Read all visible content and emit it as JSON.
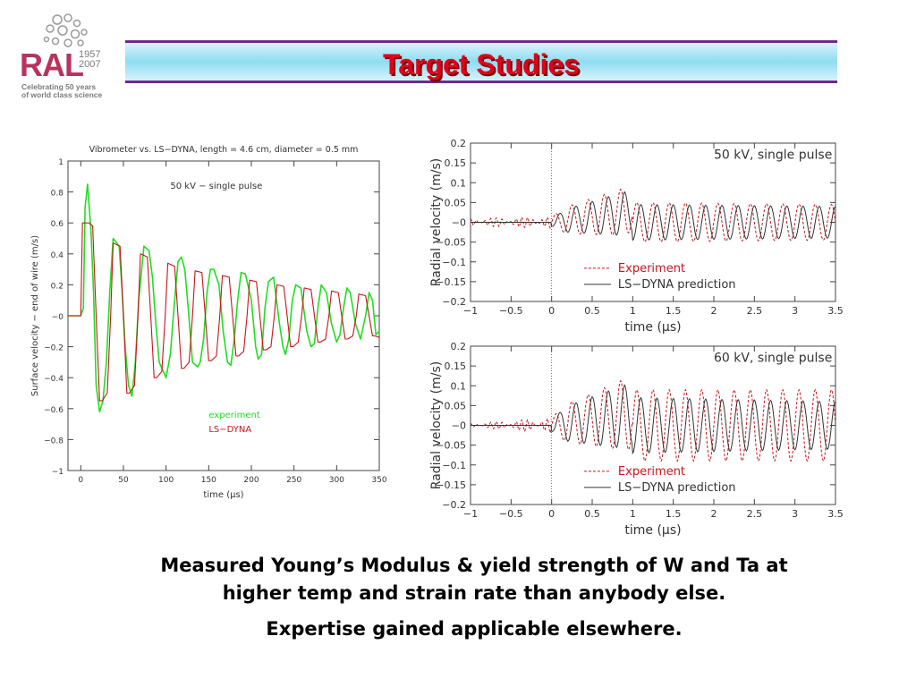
{
  "logo": {
    "ral": "RAL",
    "years": [
      "1957",
      "2007"
    ],
    "tagline": [
      "Celebrating 50 years",
      "of world class science"
    ]
  },
  "header": {
    "title": "Target Studies"
  },
  "caption": {
    "line1": "Measured Young’s Modulus & yield strength of W and Ta at",
    "line2": "higher temp and strain rate than anybody else.",
    "line3": "Expertise gained applicable elsewhere."
  },
  "colors": {
    "title": "#e0001b",
    "bar_border": "#6a2c8f",
    "experiment_green": "#22dd22",
    "lsdyna_red": "#c8151b"
  },
  "chart_data": [
    {
      "type": "line",
      "title": "Vibrometer vs. LS−DYNA, length = 4.6 cm, diameter = 0.5 mm",
      "annotation": "50 kV − single pulse",
      "xlabel": "time (μs)",
      "ylabel": "Surface velocity − end of wire (m/s)",
      "xlim": [
        -15,
        350
      ],
      "ylim": [
        -1,
        1
      ],
      "xticks": [
        0,
        50,
        100,
        150,
        200,
        250,
        300,
        350
      ],
      "yticks": [
        1,
        0.8,
        0.6,
        0.4,
        0.2,
        0,
        -0.2,
        -0.4,
        -0.6,
        -0.8,
        -1
      ],
      "ytick_labels": [
        "1",
        "0.8",
        "0.6",
        "0.4",
        "0.2",
        "−0",
        "−0.2",
        "−0.4",
        "−0.6",
        "−0.8",
        "−1"
      ],
      "legend": [
        "experiment",
        "LS−DYNA"
      ],
      "series": [
        {
          "name": "experiment",
          "color": "#22dd22",
          "x": [
            -15,
            0,
            3,
            5,
            8,
            12,
            15,
            18,
            22,
            26,
            30,
            34,
            38,
            45,
            48,
            52,
            56,
            60,
            64,
            68,
            74,
            80,
            84,
            88,
            92,
            96,
            100,
            105,
            110,
            114,
            118,
            122,
            126,
            131,
            137,
            140,
            144,
            148,
            152,
            156,
            162,
            167,
            172,
            176,
            180,
            184,
            188,
            193,
            200,
            205,
            208,
            212,
            216,
            220,
            226,
            233,
            237,
            240,
            244,
            248,
            252,
            258,
            265,
            270,
            274,
            278,
            282,
            288,
            294,
            300,
            304,
            308,
            312,
            316,
            322,
            328,
            334,
            338,
            342,
            346,
            350
          ],
          "y": [
            0,
            0,
            0.05,
            0.7,
            0.85,
            0.55,
            0.15,
            -0.45,
            -0.62,
            -0.55,
            -0.3,
            0.15,
            0.5,
            0.45,
            0.2,
            -0.2,
            -0.45,
            -0.52,
            -0.3,
            0.1,
            0.45,
            0.42,
            0.25,
            -0.05,
            -0.3,
            -0.35,
            -0.4,
            -0.25,
            0.1,
            0.35,
            0.38,
            0.3,
            0.05,
            -0.3,
            -0.33,
            -0.3,
            -0.15,
            0.15,
            0.3,
            0.3,
            0.2,
            -0.1,
            -0.3,
            -0.32,
            -0.15,
            0.1,
            0.28,
            0.27,
            0.1,
            -0.2,
            -0.28,
            -0.25,
            0.05,
            0.22,
            0.25,
            -0.05,
            -0.2,
            -0.25,
            -0.15,
            0.1,
            0.2,
            0.18,
            -0.1,
            -0.2,
            -0.18,
            0.05,
            0.2,
            0.15,
            -0.05,
            -0.17,
            -0.12,
            0.05,
            0.18,
            0.15,
            -0.05,
            -0.15,
            0.0,
            0.15,
            0.1,
            -0.12,
            -0.1
          ]
        },
        {
          "name": "LS−DYNA",
          "color": "#c8151b",
          "x": [
            -15,
            0,
            2,
            4,
            10,
            14,
            18,
            22,
            25,
            31,
            35,
            38,
            46,
            50,
            54,
            57,
            63,
            67,
            70,
            78,
            82,
            86,
            89,
            95,
            99,
            102,
            110,
            114,
            118,
            121,
            127,
            131,
            134,
            142,
            146,
            150,
            153,
            159,
            163,
            166,
            174,
            178,
            182,
            185,
            191,
            195,
            198,
            206,
            210,
            214,
            217,
            223,
            227,
            230,
            238,
            242,
            246,
            249,
            255,
            259,
            262,
            270,
            274,
            278,
            281,
            287,
            291,
            294,
            302,
            306,
            310,
            313,
            319,
            323,
            326,
            334,
            338,
            342,
            345,
            350
          ],
          "y": [
            0,
            0,
            0.6,
            0.6,
            0.6,
            0.58,
            0,
            -0.55,
            -0.55,
            -0.5,
            0,
            0.47,
            0.45,
            0,
            -0.5,
            -0.5,
            -0.45,
            0,
            0.4,
            0.38,
            0,
            -0.4,
            -0.4,
            -0.36,
            0,
            0.34,
            0.32,
            0,
            -0.34,
            -0.34,
            -0.3,
            0,
            0.29,
            0.28,
            0,
            -0.29,
            -0.29,
            -0.26,
            0,
            0.26,
            0.25,
            0,
            -0.26,
            -0.26,
            -0.23,
            0,
            0.23,
            0.22,
            0,
            -0.22,
            -0.22,
            -0.2,
            0,
            0.2,
            0.19,
            0,
            -0.2,
            -0.2,
            -0.17,
            0,
            0.18,
            0.17,
            0,
            -0.17,
            -0.17,
            -0.15,
            0,
            0.16,
            0.15,
            0,
            -0.15,
            -0.15,
            -0.13,
            0,
            0.14,
            0.13,
            0,
            -0.13,
            -0.13,
            -0.14
          ]
        }
      ]
    },
    {
      "type": "line",
      "annotation": "50 kV, single pulse",
      "xlabel": "time (μs)",
      "ylabel": "Radial velocity (m/s)",
      "xlim": [
        -1,
        3.5
      ],
      "ylim": [
        -0.2,
        0.2
      ],
      "xticks": [
        -1,
        -0.5,
        0,
        0.5,
        1,
        1.5,
        2,
        2.5,
        3,
        3.5
      ],
      "xtick_labels": [
        "−1",
        "−0.5",
        "0",
        "0.5",
        "1",
        "1.5",
        "2",
        "2.5",
        "3",
        "3.5"
      ],
      "yticks": [
        0.2,
        0.15,
        0.1,
        0.05,
        0,
        -0.05,
        -0.1,
        -0.15,
        -0.2
      ],
      "ytick_labels": [
        "0.2",
        "0.15",
        "0.1",
        "0.05",
        "−0",
        "−0.05",
        "−0.1",
        "−0.15",
        "−0.2"
      ],
      "legend": [
        "Experiment",
        "LS−DYNA prediction"
      ],
      "pre_pulse_amplitude": 0.01,
      "osc_period_us": 0.2,
      "series": [
        {
          "name": "Experiment",
          "color": "#c8151b",
          "style": "dashed",
          "envelope": {
            "x": [
              -1,
              0,
              0.2,
              0.9,
              1.0,
              3.5
            ],
            "amp": [
              0.01,
              0.015,
              0.035,
              0.06,
              0.05,
              0.045
            ]
          }
        },
        {
          "name": "LS−DYNA prediction",
          "color": "#333333",
          "style": "solid",
          "envelope": {
            "x": [
              -1,
              0,
              0.2,
              0.9,
              1.0,
              3.5
            ],
            "amp": [
              0,
              0.01,
              0.03,
              0.055,
              0.045,
              0.04
            ]
          }
        }
      ]
    },
    {
      "type": "line",
      "annotation": "60 kV, single pulse",
      "xlabel": "time (μs)",
      "ylabel": "Radial velocity (m/s)",
      "xlim": [
        -1,
        3.5
      ],
      "ylim": [
        -0.2,
        0.2
      ],
      "xticks": [
        -1,
        -0.5,
        0,
        0.5,
        1,
        1.5,
        2,
        2.5,
        3,
        3.5
      ],
      "xtick_labels": [
        "−1",
        "−0.5",
        "0",
        "0.5",
        "1",
        "1.5",
        "2",
        "2.5",
        "3",
        "3.5"
      ],
      "yticks": [
        0.2,
        0.15,
        0.1,
        0.05,
        0,
        -0.05,
        -0.1,
        -0.15,
        -0.2
      ],
      "ytick_labels": [
        "0.2",
        "0.15",
        "0.1",
        "0.05",
        "−0",
        "−0.05",
        "−0.1",
        "−0.15",
        "−0.2"
      ],
      "legend": [
        "Experiment",
        "LS−DYNA prediction"
      ],
      "pre_pulse_amplitude": 0.005,
      "osc_period_us": 0.2,
      "series": [
        {
          "name": "Experiment",
          "color": "#c8151b",
          "style": "dashed",
          "envelope": {
            "x": [
              -1,
              0,
              0.2,
              0.9,
              1.0,
              3.5
            ],
            "amp": [
              0.005,
              0.02,
              0.05,
              0.09,
              0.09,
              0.09
            ]
          }
        },
        {
          "name": "LS−DYNA prediction",
          "color": "#333333",
          "style": "solid",
          "envelope": {
            "x": [
              -1,
              0,
              0.2,
              0.9,
              1.0,
              3.5
            ],
            "amp": [
              0,
              0.015,
              0.045,
              0.08,
              0.07,
              0.06
            ]
          }
        }
      ]
    }
  ]
}
